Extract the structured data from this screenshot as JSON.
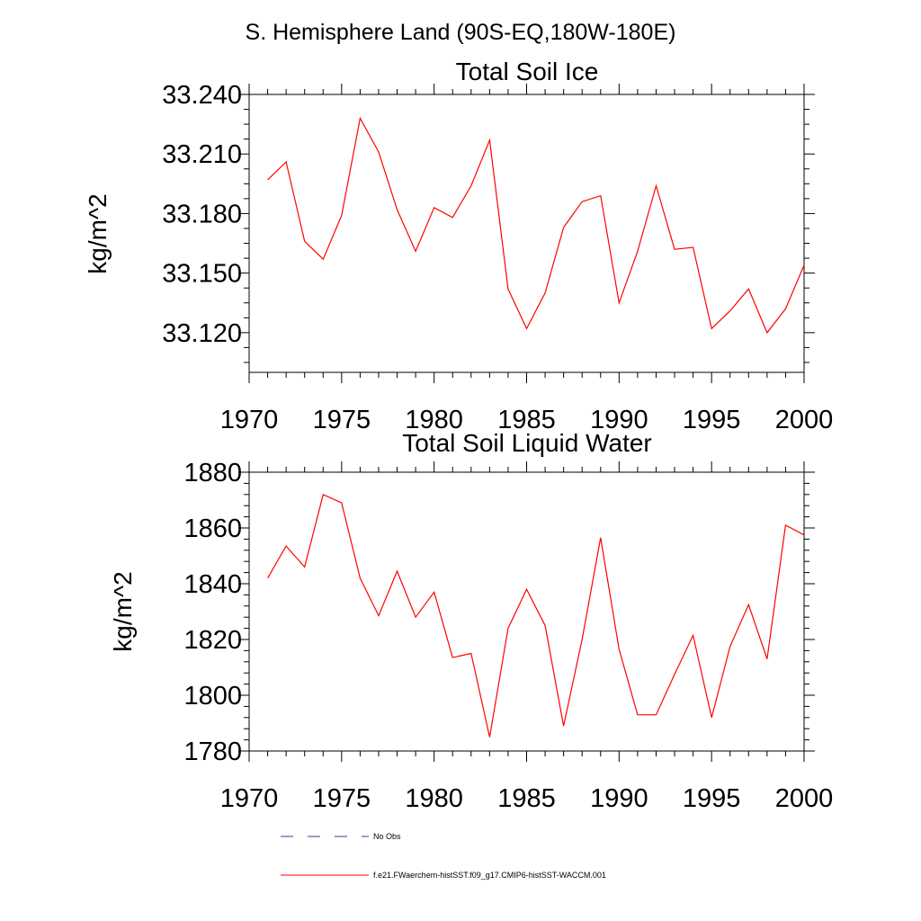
{
  "figure": {
    "suptitle": "S. Hemisphere Land (90S-EQ,180W-180E)"
  },
  "legend": {
    "items": [
      {
        "label": "No Obs",
        "color": "#3a3aa0",
        "style": "dashed"
      },
      {
        "label": "f.e21.FWaerchem-histSST.f09_g17.CMIP6-histSST-WACCM.001",
        "color": "#ff0000",
        "style": "solid"
      }
    ]
  },
  "chart_data": [
    {
      "type": "line",
      "title": "Total Soil Ice",
      "ylabel": "kg/m^2",
      "xlabel": "",
      "xlim": [
        1970,
        2000
      ],
      "ylim": [
        33.1,
        33.24
      ],
      "xticks": [
        1970,
        1975,
        1980,
        1985,
        1990,
        1995,
        2000
      ],
      "yticks": [
        33.12,
        33.15,
        33.18,
        33.21,
        33.24
      ],
      "ytick_labels": [
        "33.120",
        "33.150",
        "33.180",
        "33.210",
        "33.240"
      ],
      "grid": false,
      "series": [
        {
          "name": "f.e21.FWaerchem-histSST.f09_g17.CMIP6-histSST-WACCM.001",
          "color": "#ff0000",
          "x": [
            1971,
            1972,
            1973,
            1974,
            1975,
            1976,
            1977,
            1978,
            1979,
            1980,
            1981,
            1982,
            1983,
            1984,
            1985,
            1986,
            1987,
            1988,
            1989,
            1990,
            1991,
            1992,
            1993,
            1994,
            1995,
            1996,
            1997,
            1998,
            1999,
            2000
          ],
          "y": [
            33.197,
            33.206,
            33.166,
            33.157,
            33.179,
            33.228,
            33.211,
            33.182,
            33.161,
            33.183,
            33.178,
            33.194,
            33.217,
            33.142,
            33.122,
            33.14,
            33.173,
            33.186,
            33.189,
            33.135,
            33.161,
            33.194,
            33.162,
            33.163,
            33.122,
            33.131,
            33.142,
            33.12,
            33.132,
            33.154
          ]
        }
      ]
    },
    {
      "type": "line",
      "title": "Total Soil Liquid Water",
      "ylabel": "kg/m^2",
      "xlabel": "",
      "xlim": [
        1970,
        2000
      ],
      "ylim": [
        1780,
        1880
      ],
      "xticks": [
        1970,
        1975,
        1980,
        1985,
        1990,
        1995,
        2000
      ],
      "yticks": [
        1780,
        1800,
        1820,
        1840,
        1860,
        1880
      ],
      "ytick_labels": [
        "1780",
        "1800",
        "1820",
        "1840",
        "1860",
        "1880"
      ],
      "grid": false,
      "series": [
        {
          "name": "f.e21.FWaerchem-histSST.f09_g17.CMIP6-histSST-WACCM.001",
          "color": "#ff0000",
          "x": [
            1971,
            1972,
            1973,
            1974,
            1975,
            1976,
            1977,
            1978,
            1979,
            1980,
            1981,
            1982,
            1983,
            1984,
            1985,
            1986,
            1987,
            1988,
            1989,
            1990,
            1991,
            1992,
            1993,
            1994,
            1995,
            1996,
            1997,
            1998,
            1999,
            2000
          ],
          "y": [
            1842,
            1853.5,
            1846,
            1872,
            1869,
            1842,
            1828.5,
            1844.5,
            1828,
            1837,
            1813.5,
            1815,
            1785,
            1824,
            1838,
            1825,
            1789,
            1820,
            1856.5,
            1816.5,
            1793,
            1793,
            1807.5,
            1821.5,
            1792,
            1817.5,
            1832.5,
            1813,
            1861,
            1857.5
          ]
        }
      ]
    }
  ]
}
